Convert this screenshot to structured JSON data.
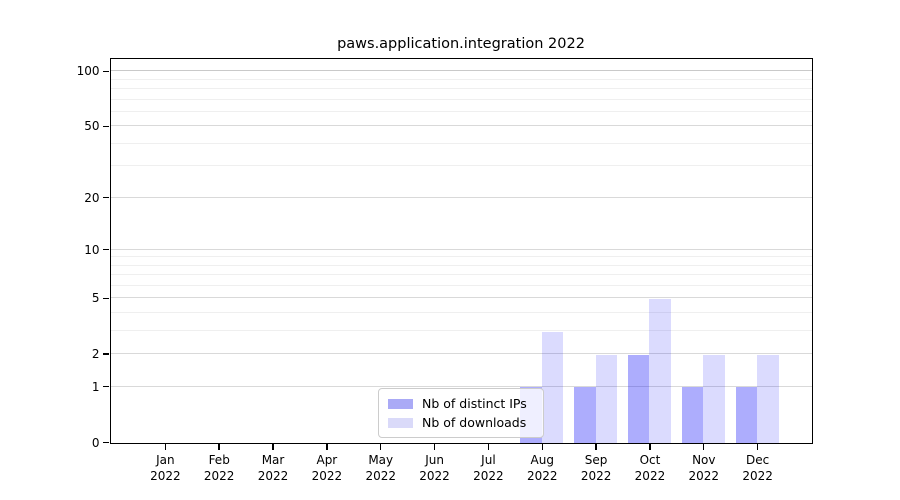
{
  "chart_data": {
    "type": "bar",
    "title": "paws.application.integration 2022",
    "categories": [
      "Jan",
      "Feb",
      "Mar",
      "Apr",
      "May",
      "Jun",
      "Jul",
      "Aug",
      "Sep",
      "Oct",
      "Nov",
      "Dec"
    ],
    "tick_label_year": "2022",
    "series": [
      {
        "name": "Nb of distinct IPs",
        "color": "rgba(15,15,250,0.34)",
        "legend_color": "#aaaaf6",
        "values": [
          0,
          0,
          0,
          0,
          0,
          0,
          0,
          1,
          1,
          2,
          1,
          1
        ]
      },
      {
        "name": "Nb of downloads",
        "color": "rgba(15,15,250,0.15)",
        "legend_color": "#dadaf9",
        "values": [
          0,
          0,
          0,
          0,
          0,
          0,
          0,
          3,
          2,
          5,
          2,
          2
        ]
      }
    ],
    "yscale": "log1p",
    "y_major_ticks": [
      0,
      1,
      2,
      5,
      10,
      20,
      50,
      100
    ],
    "y_minor_ticks": [
      3,
      4,
      6,
      7,
      8,
      9,
      30,
      40,
      60,
      70,
      80,
      90
    ],
    "ylim": [
      0,
      116
    ],
    "xlabel": "",
    "ylabel": "",
    "grid": "horizontal-major-and-minor",
    "legend_position": "lower center"
  },
  "colors": {
    "grid_major": "#d9d9d9",
    "grid_minor": "#efefef",
    "grid_top": "#c9c9c9",
    "spine": "#000000",
    "text": "#000000",
    "background": "#ffffff"
  }
}
